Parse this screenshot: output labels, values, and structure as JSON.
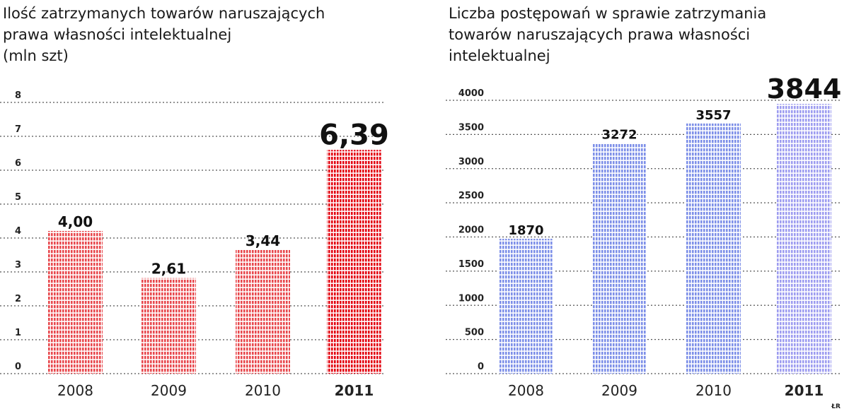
{
  "chart_data": [
    {
      "type": "bar",
      "title_lines": [
        "Ilość zatrzymanych towarów naruszających",
        "prawa własności intelektualnej",
        "(mln szt)"
      ],
      "categories": [
        "2008",
        "2009",
        "2010",
        "2011"
      ],
      "values": [
        4.0,
        2.61,
        3.44,
        6.39
      ],
      "value_labels": [
        "4,00",
        "2,61",
        "3,44",
        "6,39"
      ],
      "yticks": [
        "0",
        "1",
        "2",
        "3",
        "4",
        "5",
        "6",
        "7",
        "8"
      ],
      "ylim": [
        0,
        8
      ],
      "grid": true,
      "bar_color": "#e8484d",
      "highlight_color": "#e3000f",
      "highlight_index": 3
    },
    {
      "type": "bar",
      "title_lines": [
        "Liczba postępowań w sprawie zatrzymania",
        "towarów naruszających prawa własności",
        "intelektualnej"
      ],
      "categories": [
        "2008",
        "2009",
        "2010",
        "2011"
      ],
      "values": [
        1870,
        3272,
        3557,
        3844
      ],
      "value_labels": [
        "1870",
        "3272",
        "3557",
        "3844"
      ],
      "yticks": [
        "0",
        "500",
        "1000",
        "1500",
        "2000",
        "2500",
        "3000",
        "3500",
        "4000"
      ],
      "ylim": [
        0,
        4000
      ],
      "grid": true,
      "bar_color": "#7d8fe8",
      "highlight_color": "#9d9cf0",
      "highlight_index": 3
    }
  ],
  "credit": "ŁR"
}
